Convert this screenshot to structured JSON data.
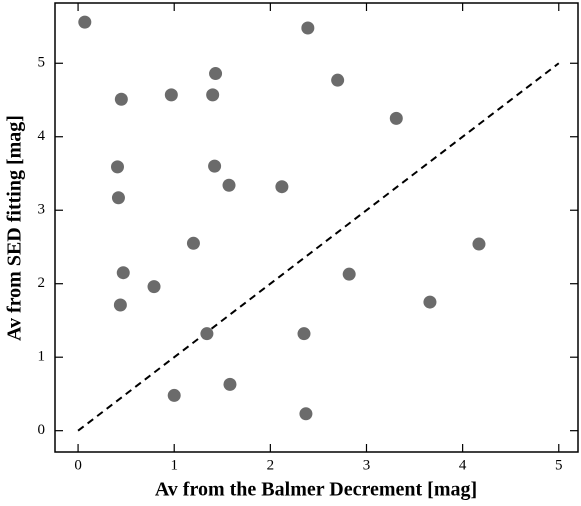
{
  "chart_data": {
    "type": "scatter",
    "x_label": "Av from the Balmer Decrement [mag]",
    "y_label": "Av from SED fitting [mag]",
    "x": [
      0.07,
      2.39,
      1.43,
      2.7,
      0.97,
      1.4,
      0.45,
      3.31,
      0.41,
      1.42,
      1.57,
      2.12,
      0.42,
      1.2,
      4.17,
      0.47,
      2.82,
      0.79,
      0.44,
      3.66,
      1.34,
      2.35,
      1.58,
      1.0,
      2.37
    ],
    "y": [
      5.56,
      5.48,
      4.86,
      4.77,
      4.57,
      4.57,
      4.51,
      4.25,
      3.59,
      3.6,
      3.34,
      3.32,
      3.17,
      2.55,
      2.54,
      2.15,
      2.13,
      1.96,
      1.71,
      1.75,
      1.32,
      1.32,
      0.63,
      0.48,
      0.23
    ],
    "color": "#6b6b6b",
    "diagonal": {
      "x": [
        0,
        5
      ],
      "y": [
        0,
        5
      ]
    },
    "xlim": [
      -0.24,
      5.2
    ],
    "ylim": [
      -0.29,
      5.82
    ],
    "xticks": [
      0,
      1,
      2,
      3,
      4,
      5
    ],
    "yticks": [
      0,
      1,
      2,
      3,
      4,
      5
    ]
  }
}
